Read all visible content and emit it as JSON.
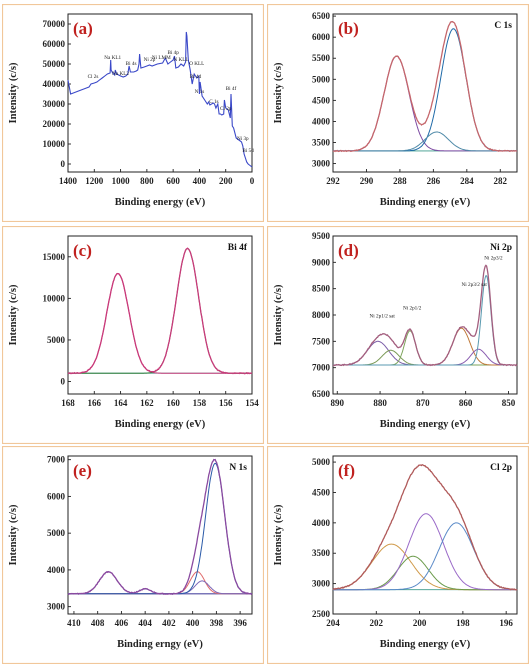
{
  "chart_data": [
    {
      "id": "a",
      "type": "line",
      "panel_label": "(a)",
      "title": "",
      "xlabel": "Binding energy (eV)",
      "ylabel": "Intensity (c/s)",
      "xlim": [
        1400,
        0
      ],
      "ylim": [
        -4000,
        75000
      ],
      "xticks": [
        1400,
        1200,
        1000,
        800,
        600,
        400,
        200,
        0
      ],
      "yticks": [
        0,
        10000,
        20000,
        30000,
        40000,
        50000,
        60000,
        70000
      ],
      "series": [
        {
          "color": "#3a48c8",
          "x": [
            1400,
            1380,
            1360,
            1340,
            1320,
            1300,
            1280,
            1260,
            1240,
            1225,
            1200,
            1180,
            1160,
            1140,
            1120,
            1100,
            1080,
            1075,
            1072,
            1060,
            1045,
            1040,
            1030,
            1000,
            980,
            960,
            945,
            935,
            925,
            900,
            880,
            870,
            860,
            855,
            845,
            820,
            800,
            780,
            760,
            720,
            680,
            660,
            640,
            620,
            600,
            590,
            580,
            560,
            540,
            520,
            505,
            500,
            495,
            485,
            470,
            455,
            440,
            420,
            405,
            400,
            395,
            380,
            360,
            340,
            330,
            320,
            295,
            285,
            275,
            260,
            250,
            240,
            230,
            215,
            210,
            200,
            180,
            165,
            160,
            150,
            140,
            120,
            100,
            80,
            70,
            60,
            50,
            40,
            30,
            20,
            10,
            0
          ],
          "y": [
            42000,
            35000,
            35500,
            36000,
            36500,
            37000,
            37500,
            38000,
            38500,
            40000,
            40500,
            41000,
            42000,
            43000,
            44000,
            45000,
            45500,
            52000,
            47000,
            45500,
            44500,
            47000,
            45000,
            44000,
            43500,
            44000,
            45000,
            49000,
            46000,
            46000,
            46500,
            47000,
            50000,
            55000,
            48000,
            48500,
            49000,
            49500,
            49000,
            50000,
            50500,
            53000,
            50000,
            51000,
            52000,
            54000,
            48000,
            48500,
            50000,
            49000,
            51000,
            66000,
            64000,
            52000,
            47000,
            40000,
            45000,
            43000,
            44000,
            35000,
            41000,
            34000,
            32000,
            30000,
            31000,
            29500,
            30500,
            30000,
            28000,
            30000,
            25000,
            25000,
            24500,
            25000,
            32000,
            28000,
            27000,
            23000,
            35000,
            19000,
            18000,
            13000,
            12000,
            11000,
            9000,
            5000,
            3000,
            1000,
            0,
            -500,
            -1000,
            -1500
          ]
        }
      ],
      "annotations": [
        {
          "text": "Cl 2s",
          "x": 1210,
          "y": 43000
        },
        {
          "text": "Na KL1",
          "x": 1060,
          "y": 52500
        },
        {
          "text": "Na KL2",
          "x": 1000,
          "y": 44500
        },
        {
          "text": "Bi 4s",
          "x": 920,
          "y": 49500
        },
        {
          "text": "Ni LMM",
          "x": 690,
          "y": 52500
        },
        {
          "text": "Bi 4p",
          "x": 600,
          "y": 55000
        },
        {
          "text": "N KLL",
          "x": 540,
          "y": 51500
        },
        {
          "text": "O KLL",
          "x": 420,
          "y": 49500
        },
        {
          "text": "Ni 2p",
          "x": 780,
          "y": 51500
        },
        {
          "text": "Bi 4d",
          "x": 430,
          "y": 43000
        },
        {
          "text": "N 1s",
          "x": 400,
          "y": 35500
        },
        {
          "text": "C 1s",
          "x": 290,
          "y": 30500
        },
        {
          "text": "Cl 2p",
          "x": 200,
          "y": 27000
        },
        {
          "text": "Bi 4f",
          "x": 160,
          "y": 37000
        },
        {
          "text": "Ni 3p",
          "x": 70,
          "y": 12000
        },
        {
          "text": "Bi 5d",
          "x": 30,
          "y": 6000
        }
      ]
    },
    {
      "id": "b",
      "type": "line",
      "panel_label": "(b)",
      "title": "C 1s",
      "xlabel": "Binding energy (eV)",
      "ylabel": "Intensity (c/s)",
      "xlim": [
        292,
        281
      ],
      "ylim": [
        2800,
        6550
      ],
      "xticks": [
        292,
        290,
        288,
        286,
        284,
        282
      ],
      "yticks": [
        3000,
        3500,
        4000,
        4500,
        5000,
        5500,
        6000,
        6500
      ],
      "baseline": 3300,
      "envelope_color": "#c5666b",
      "peaks": [
        {
          "color": "#7e4ba3",
          "center": 288.2,
          "height": 2250,
          "width": 0.75
        },
        {
          "color": "#1f6aa8",
          "center": 284.8,
          "height": 2900,
          "width": 0.75
        },
        {
          "color": "#4f8aa8",
          "center": 285.8,
          "height": 450,
          "width": 0.7
        }
      ]
    },
    {
      "id": "c",
      "type": "line",
      "panel_label": "(c)",
      "title": "Bi 4f",
      "xlabel": "Binding energy (eV)",
      "ylabel": "Intensity (c/s)",
      "xlim": [
        168,
        154
      ],
      "ylim": [
        -1500,
        17500
      ],
      "xticks": [
        168,
        166,
        164,
        162,
        160,
        158,
        156,
        154
      ],
      "yticks": [
        0,
        5000,
        10000,
        15000
      ],
      "baseline": 1000,
      "envelope_color": "#c93a7a",
      "peaks": [
        {
          "color": "#c93a7a",
          "center": 164.2,
          "height": 12000,
          "width": 0.85
        },
        {
          "color": "#2e7d3a",
          "center": 158.9,
          "height": 15000,
          "width": 0.85
        }
      ]
    },
    {
      "id": "d",
      "type": "line",
      "panel_label": "(d)",
      "title": "Ni 2p",
      "xlabel": "Binding energy (eV)",
      "ylabel": "Intensity (c/s)",
      "xlim": [
        891,
        848
      ],
      "ylim": [
        6500,
        9500
      ],
      "xticks": [
        890,
        880,
        870,
        860,
        850
      ],
      "yticks": [
        6500,
        7000,
        7500,
        8000,
        8500,
        9000,
        9500
      ],
      "baseline": 7050,
      "envelope_color": "#a35e7e",
      "peaks": [
        {
          "color": "#7b5ea8",
          "center": 880.5,
          "height": 450,
          "width": 2.5
        },
        {
          "color": "#7b9a57",
          "center": 877.5,
          "height": 280,
          "width": 2.0
        },
        {
          "color": "#7ea45c",
          "center": 873.0,
          "height": 650,
          "width": 1.3
        },
        {
          "color": "#c07a3a",
          "center": 861.0,
          "height": 700,
          "width": 2.0
        },
        {
          "color": "#8a5db0",
          "center": 857.0,
          "height": 300,
          "width": 1.8
        },
        {
          "color": "#5a9ab0",
          "center": 855.2,
          "height": 1700,
          "width": 1.1
        }
      ],
      "annotations": [
        {
          "text": "Ni 2p1/2 sat",
          "x": 879.5,
          "y": 7950
        },
        {
          "text": "Ni 2p1/2",
          "x": 872.5,
          "y": 8100
        },
        {
          "text": "Ni 2p3/2 sat",
          "x": 858,
          "y": 8550
        },
        {
          "text": "Ni 2p3/2",
          "x": 853.5,
          "y": 9050
        }
      ]
    },
    {
      "id": "e",
      "type": "line",
      "panel_label": "(e)",
      "title": "N 1s",
      "xlabel": "Binding erngy (eV)",
      "ylabel": "Intensity (c/s)",
      "xlim": [
        410.5,
        395
      ],
      "ylim": [
        2800,
        7100
      ],
      "xticks": [
        410,
        408,
        406,
        404,
        402,
        400,
        398,
        396
      ],
      "yticks": [
        3000,
        4000,
        5000,
        6000,
        7000
      ],
      "baseline": 3350,
      "envelope_color": "#8a4aa0",
      "peaks": [
        {
          "color": "#8a4aa0",
          "center": 407.1,
          "height": 600,
          "width": 0.75
        },
        {
          "color": "#6a6ab8",
          "center": 404.0,
          "height": 130,
          "width": 0.5
        },
        {
          "color": "#e06a6a",
          "center": 399.6,
          "height": 600,
          "width": 0.6
        },
        {
          "color": "#7d6ab8",
          "center": 399.2,
          "height": 350,
          "width": 0.6
        },
        {
          "color": "#2a5aa8",
          "center": 398.1,
          "height": 3550,
          "width": 0.8
        }
      ]
    },
    {
      "id": "f",
      "type": "line",
      "panel_label": "(f)",
      "title": "Cl 2p",
      "xlabel": "Binding energy (eV)",
      "ylabel": "Intensity (c/s)",
      "xlim": [
        204,
        195.5
      ],
      "ylim": [
        2500,
        5100
      ],
      "xticks": [
        204,
        202,
        200,
        198,
        196
      ],
      "yticks": [
        2500,
        3000,
        3500,
        4000,
        4500,
        5000
      ],
      "baseline": 2900,
      "envelope_color": "#b05a5a",
      "peaks": [
        {
          "color": "#d09a4a",
          "center": 201.3,
          "height": 750,
          "width": 0.9
        },
        {
          "color": "#6a9a4a",
          "center": 200.3,
          "height": 550,
          "width": 0.7
        },
        {
          "color": "#9a6ac8",
          "center": 199.7,
          "height": 1250,
          "width": 0.8
        },
        {
          "color": "#5a8ac8",
          "center": 198.3,
          "height": 1100,
          "width": 0.8
        }
      ]
    }
  ]
}
